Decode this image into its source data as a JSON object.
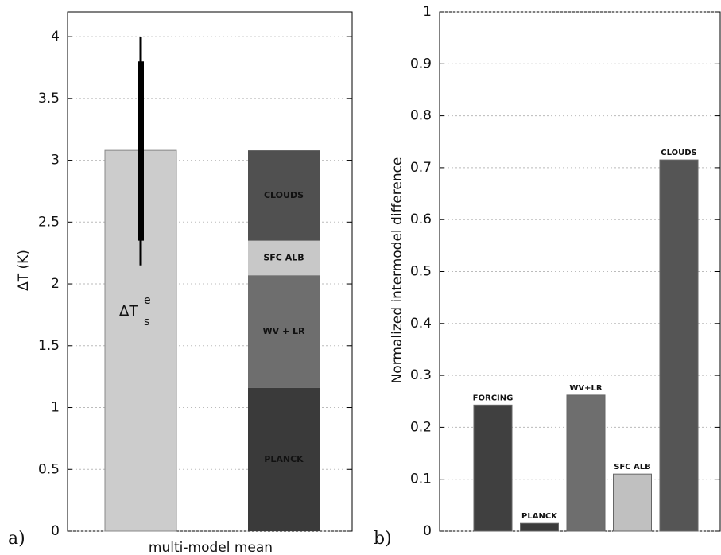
{
  "chart_data": [
    {
      "type": "stacked_bar",
      "panel_label": "a)",
      "ylabel": "ΔT (K)",
      "xlabel": "multi-model mean",
      "ylim": [
        0,
        4.2
      ],
      "yticks": [
        0,
        0.5,
        1,
        1.5,
        2,
        2.5,
        3,
        3.5,
        4
      ],
      "grid": true,
      "total": {
        "label_parts": [
          "ΔT",
          "s",
          "e"
        ],
        "value": 3.08,
        "color": "#cccccc",
        "range": [
          2.15,
          4.0
        ],
        "thick_range": [
          2.35,
          3.8
        ]
      },
      "series": [
        {
          "name": "PLANCK",
          "color": "#3a3a3a",
          "values": [
            1.16
          ]
        },
        {
          "name": "WV + LR",
          "color": "#6e6e6e",
          "values": [
            0.91
          ]
        },
        {
          "name": "SFC ALB",
          "color": "#c8c8c8",
          "values": [
            0.28
          ]
        },
        {
          "name": "CLOUDS",
          "color": "#505050",
          "values": [
            0.73
          ]
        }
      ]
    },
    {
      "type": "bar",
      "panel_label": "b)",
      "ylabel": "Normalized intermodel difference",
      "ylim": [
        0,
        1
      ],
      "yticks": [
        0,
        0.1,
        0.2,
        0.3,
        0.4,
        0.5,
        0.6,
        0.7,
        0.8,
        0.9,
        1
      ],
      "grid": true,
      "categories": [
        "FORCING",
        "PLANCK",
        "WV+LR",
        "SFC ALB",
        "CLOUDS"
      ],
      "values": [
        0.243,
        0.015,
        0.262,
        0.11,
        0.715
      ],
      "colors": [
        "#404040",
        "#3a3a3a",
        "#6e6e6e",
        "#c0c0c0",
        "#555555"
      ]
    }
  ]
}
